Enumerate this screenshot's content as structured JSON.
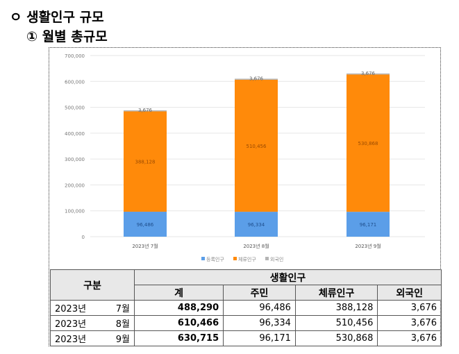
{
  "heading": "ㅇ 생활인구 규모",
  "subheading": "① 월별 총규모",
  "chart_data": {
    "type": "bar",
    "stacked": true,
    "categories": [
      "2023년 7월",
      "2023년 8월",
      "2023년 9월"
    ],
    "series": [
      {
        "name": "등록인구",
        "values": [
          96486,
          96334,
          96171
        ],
        "color": "#5b9ee8"
      },
      {
        "name": "체류인구",
        "values": [
          388128,
          510456,
          530868
        ],
        "color": "#ff8a0a"
      },
      {
        "name": "외국인",
        "values": [
          3676,
          3676,
          3676
        ],
        "color": "#b5b5b5"
      }
    ],
    "ylim": [
      0,
      700000
    ],
    "yticks": [
      "0",
      "100,000",
      "200,000",
      "300,000",
      "400,000",
      "500,000",
      "600,000",
      "700,000"
    ],
    "grid": true,
    "legend": "bottom"
  },
  "table": {
    "col_group": "구분",
    "group": "생활인구",
    "headers": [
      "계",
      "주민",
      "체류인구",
      "외국인"
    ],
    "rows": [
      {
        "year": "2023년",
        "month": "7월",
        "values": [
          "488,290",
          "96,486",
          "388,128",
          "3,676"
        ]
      },
      {
        "year": "2023년",
        "month": "8월",
        "values": [
          "610,466",
          "96,334",
          "510,456",
          "3,676"
        ]
      },
      {
        "year": "2023년",
        "month": "9월",
        "values": [
          "630,715",
          "96,171",
          "530,868",
          "3,676"
        ]
      }
    ]
  }
}
